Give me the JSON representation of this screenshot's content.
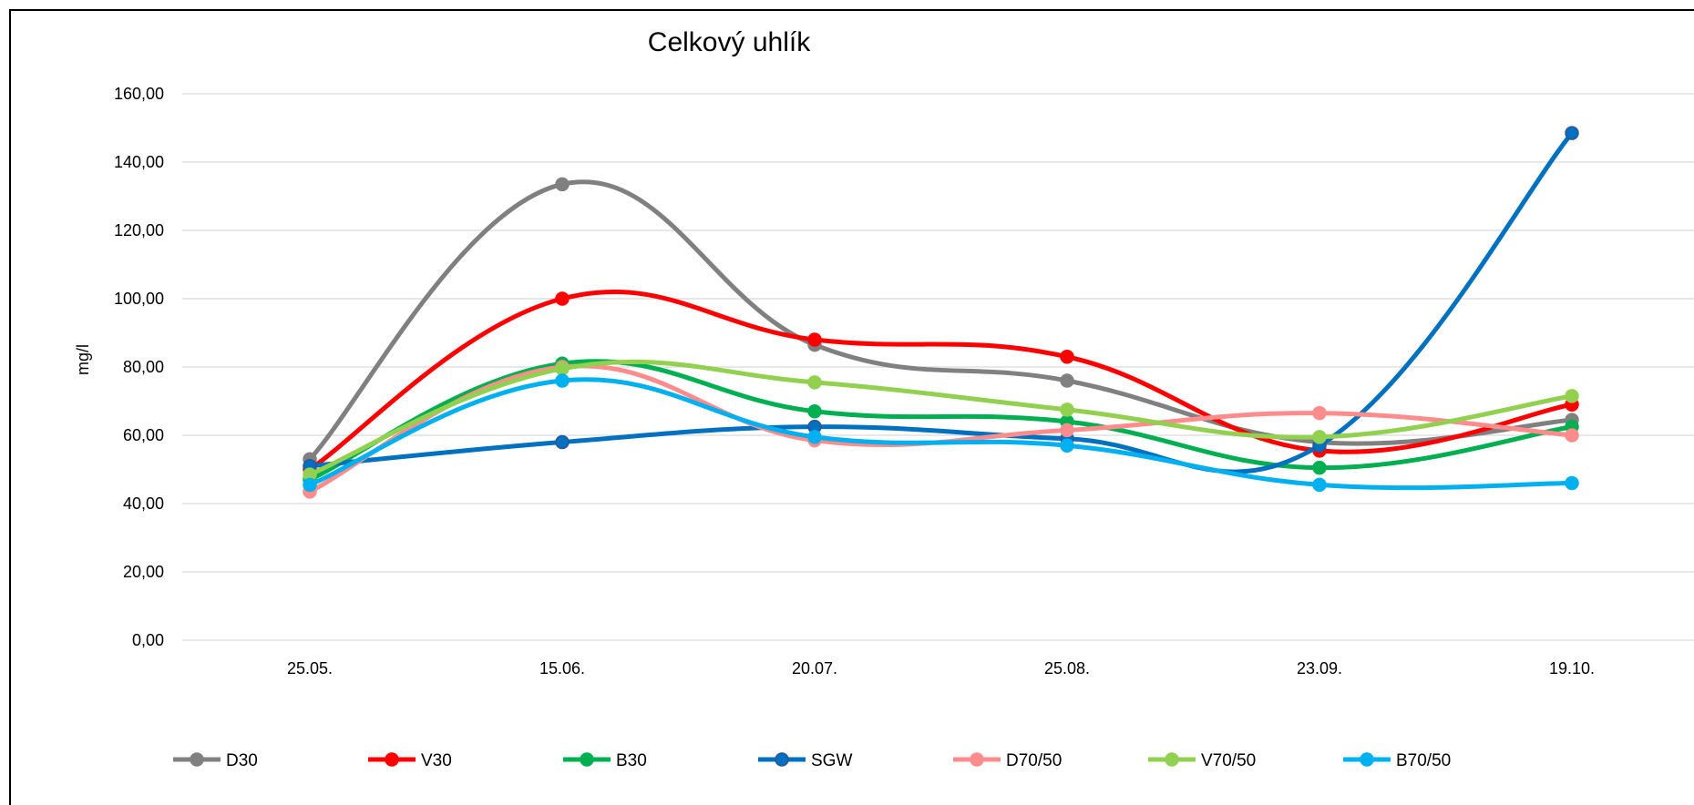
{
  "chart_data": {
    "type": "line",
    "title": "Celkový uhlík",
    "xlabel": "",
    "ylabel": "mg/l",
    "categories": [
      "25.05.",
      "15.06.",
      "20.07.",
      "25.08.",
      "23.09.",
      "19.10."
    ],
    "ylim": [
      0,
      160
    ],
    "yticks": [
      "0,00",
      "20,00",
      "40,00",
      "60,00",
      "80,00",
      "100,00",
      "120,00",
      "140,00",
      "160,00"
    ],
    "grid": true,
    "smooth": true,
    "legend_position": "bottom",
    "series": [
      {
        "name": "D30",
        "color": "#808080",
        "values": [
          53.0,
          133.5,
          86.5,
          76.0,
          58.0,
          64.5
        ]
      },
      {
        "name": "V30",
        "color": "#ff0000",
        "values": [
          50.0,
          100.0,
          88.0,
          83.0,
          55.5,
          69.0
        ]
      },
      {
        "name": "B30",
        "color": "#00b050",
        "values": [
          47.0,
          81.0,
          67.0,
          64.0,
          50.5,
          62.5
        ]
      },
      {
        "name": "SGW",
        "color": "#0070c0",
        "values": [
          51.0,
          58.0,
          62.5,
          59.0,
          57.0,
          148.5
        ]
      },
      {
        "name": "D70/50",
        "color": "#ff8c8c",
        "values": [
          43.5,
          80.0,
          58.5,
          61.5,
          66.5,
          60.0
        ]
      },
      {
        "name": "V70/50",
        "color": "#92d050",
        "values": [
          48.5,
          79.5,
          75.5,
          67.5,
          59.5,
          71.5
        ]
      },
      {
        "name": "B70/50",
        "color": "#00b0f0",
        "values": [
          45.5,
          76.0,
          59.5,
          57.0,
          45.5,
          46.0
        ]
      }
    ]
  }
}
